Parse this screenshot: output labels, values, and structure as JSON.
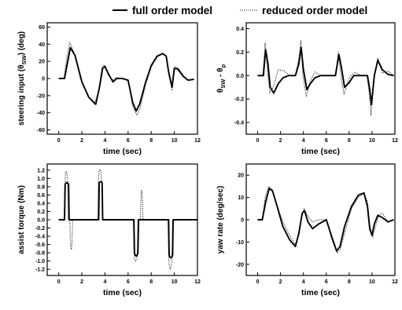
{
  "legend": {
    "full_label": "full order model",
    "reduced_label": "reduced order model"
  },
  "chart_data": [
    {
      "type": "line",
      "xlabel": "time (sec)",
      "ylabel_parts": [
        {
          "t": "steering input (θ"
        },
        {
          "t": "SW",
          "sub": true
        },
        {
          "t": ") (deg)"
        }
      ],
      "xlim": [
        -1,
        12
      ],
      "ylim": [
        -65,
        65
      ],
      "xticks": [
        0,
        2,
        4,
        6,
        8,
        10,
        12
      ],
      "yticks": [
        -60,
        -40,
        -20,
        0,
        20,
        40,
        60
      ],
      "grid": false,
      "series": [
        {
          "style": "solid",
          "x": [
            0,
            0.5,
            0.75,
            1.0,
            1.4,
            2.0,
            2.6,
            3.2,
            3.5,
            3.8,
            4.0,
            4.3,
            4.7,
            5.0,
            5.5,
            6.0,
            6.4,
            6.7,
            7.0,
            7.5,
            8.0,
            8.5,
            9.0,
            9.3,
            9.5,
            9.8,
            10.0,
            10.3,
            10.8,
            11.2,
            11.7
          ],
          "y": [
            0,
            0,
            18,
            36,
            27,
            -4,
            -22,
            -30,
            -12,
            12,
            14,
            5,
            -4,
            0,
            0,
            -2,
            -28,
            -38,
            -30,
            -5,
            15,
            26,
            29,
            26,
            8,
            -10,
            12,
            11,
            2,
            -2,
            -1
          ]
        },
        {
          "style": "dotted",
          "x": [
            0,
            0.45,
            0.7,
            0.95,
            1.3,
            1.9,
            2.5,
            3.1,
            3.45,
            3.75,
            3.95,
            4.2,
            4.6,
            5.0,
            5.5,
            6.0,
            6.4,
            6.75,
            7.05,
            7.5,
            8.0,
            8.5,
            9.0,
            9.3,
            9.5,
            9.8,
            10.05,
            10.35,
            10.8,
            11.2,
            11.7
          ],
          "y": [
            0,
            0,
            25,
            42,
            31,
            -1,
            -20,
            -30,
            -14,
            14,
            16,
            7,
            -2,
            1,
            0,
            -2,
            -33,
            -43,
            -34,
            -8,
            13,
            25,
            29,
            26,
            5,
            -14,
            14,
            12,
            3,
            -2,
            -1
          ]
        }
      ]
    },
    {
      "type": "line",
      "xlabel": "time (sec)",
      "ylabel_parts": [
        {
          "t": "θ"
        },
        {
          "t": "SW",
          "sub": true
        },
        {
          "t": " - θ"
        },
        {
          "t": "p",
          "sub": true
        }
      ],
      "xlim": [
        -1,
        12
      ],
      "ylim": [
        -0.5,
        0.45
      ],
      "xticks": [
        0,
        2,
        4,
        6,
        8,
        10,
        12
      ],
      "yticks": [
        -0.4,
        -0.2,
        0.0,
        0.2,
        0.4
      ],
      "grid": false,
      "series": [
        {
          "style": "solid",
          "x": [
            0,
            0.5,
            0.7,
            0.9,
            1.1,
            1.4,
            1.8,
            2.2,
            2.7,
            3.3,
            3.6,
            3.8,
            4.0,
            4.3,
            4.6,
            5.0,
            5.5,
            6.2,
            6.8,
            7.1,
            7.3,
            7.6,
            8.0,
            8.4,
            9.0,
            9.6,
            9.8,
            9.95,
            10.2,
            10.5,
            10.9,
            11.4,
            11.9
          ],
          "y": [
            0,
            0,
            0.22,
            0.1,
            -0.1,
            -0.15,
            -0.07,
            -0.02,
            0,
            0,
            0.1,
            0.24,
            0.05,
            -0.12,
            -0.07,
            -0.02,
            0,
            0,
            0,
            0.18,
            0.08,
            -0.1,
            -0.06,
            0,
            0,
            0,
            -0.12,
            -0.25,
            0.0,
            0.13,
            0.05,
            0.01,
            0
          ]
        },
        {
          "style": "dotted",
          "x": [
            0,
            0.45,
            0.65,
            0.85,
            1.05,
            1.35,
            1.8,
            2.3,
            2.8,
            3.3,
            3.6,
            3.78,
            3.95,
            4.25,
            4.6,
            5.0,
            5.5,
            6.2,
            6.8,
            7.05,
            7.25,
            7.55,
            8.0,
            8.5,
            9.0,
            9.55,
            9.75,
            9.9,
            10.15,
            10.5,
            10.9,
            11.4,
            11.9
          ],
          "y": [
            0,
            0,
            0.28,
            0.05,
            -0.15,
            -0.1,
            0.05,
            0.04,
            0,
            0,
            0.15,
            0.3,
            0.0,
            -0.18,
            -0.05,
            0.03,
            0,
            0,
            0,
            0.2,
            0.02,
            -0.16,
            -0.02,
            0.03,
            0,
            0,
            -0.15,
            -0.34,
            -0.05,
            0.15,
            0.02,
            0.04,
            0
          ]
        }
      ]
    },
    {
      "type": "line",
      "xlabel": "time (sec)",
      "ylabel_parts": [
        {
          "t": "assist torque (Nm)"
        }
      ],
      "xlim": [
        -1,
        12
      ],
      "ylim": [
        -1.35,
        1.35
      ],
      "xticks": [
        0,
        2,
        4,
        6,
        8,
        10,
        12
      ],
      "yticks": [
        -1.2,
        -1.0,
        -0.8,
        -0.6,
        -0.4,
        -0.2,
        0.0,
        0.2,
        0.4,
        0.6,
        0.8,
        1.0,
        1.2
      ],
      "grid": false,
      "series": [
        {
          "style": "solid",
          "x": [
            0,
            0.5,
            0.55,
            0.6,
            0.7,
            0.8,
            0.85,
            0.9,
            3.4,
            3.45,
            3.5,
            3.6,
            3.7,
            3.75,
            3.8,
            6.5,
            6.55,
            6.6,
            6.7,
            6.8,
            6.85,
            6.9,
            9.5,
            9.55,
            9.6,
            9.7,
            9.8,
            9.85,
            9.9,
            12
          ],
          "y": [
            0,
            0,
            0.85,
            0.88,
            0.9,
            0.88,
            0.85,
            0,
            0,
            0,
            0.9,
            0.92,
            0.92,
            0.9,
            0,
            0,
            -0.8,
            -0.85,
            -0.88,
            -0.85,
            -0.8,
            0,
            0,
            -0.85,
            -0.9,
            -0.92,
            -0.9,
            -0.85,
            0,
            0
          ]
        },
        {
          "style": "dotted",
          "x": [
            0,
            0.48,
            0.52,
            0.58,
            0.65,
            0.72,
            0.78,
            0.82,
            0.95,
            1.0,
            1.05,
            1.1,
            1.15,
            1.2,
            1.25,
            3.38,
            3.42,
            3.48,
            3.55,
            3.65,
            3.72,
            3.78,
            3.82,
            6.45,
            6.5,
            6.55,
            6.65,
            6.75,
            6.8,
            6.85,
            7.05,
            7.1,
            7.15,
            7.2,
            7.25,
            7.3,
            9.45,
            9.5,
            9.55,
            9.65,
            9.75,
            9.8,
            9.85,
            12
          ],
          "y": [
            0,
            0,
            0.8,
            1.1,
            1.18,
            1.1,
            0.8,
            0,
            0,
            -0.5,
            -0.7,
            -0.72,
            -0.5,
            0,
            0,
            0,
            0.9,
            1.18,
            1.22,
            1.18,
            0.9,
            0.5,
            0,
            0,
            -0.7,
            -0.95,
            -1.0,
            -0.95,
            -0.7,
            0,
            0,
            0.4,
            0.72,
            0.7,
            0.4,
            0,
            0,
            -0.8,
            -1.1,
            -1.2,
            -1.1,
            -0.8,
            0,
            0
          ]
        }
      ]
    },
    {
      "type": "line",
      "xlabel": "time (sec)",
      "ylabel_parts": [
        {
          "t": "yaw rate (deg/sec)"
        }
      ],
      "xlim": [
        -1,
        12
      ],
      "ylim": [
        -25,
        25
      ],
      "xticks": [
        0,
        2,
        4,
        6,
        8,
        10,
        12
      ],
      "yticks": [
        -20,
        -10,
        0,
        10,
        20
      ],
      "grid": false,
      "series": [
        {
          "style": "solid",
          "x": [
            0,
            0.4,
            0.7,
            1.0,
            1.3,
            1.7,
            2.2,
            2.8,
            3.3,
            3.6,
            3.9,
            4.1,
            4.4,
            4.8,
            5.3,
            6.0,
            6.5,
            6.9,
            7.2,
            7.6,
            8.2,
            8.8,
            9.3,
            9.6,
            9.8,
            10.0,
            10.2,
            10.5,
            10.9,
            11.4,
            11.9
          ],
          "y": [
            0,
            0,
            8,
            14,
            13,
            6,
            -3,
            -9,
            -12,
            -6,
            3,
            4,
            -1,
            -4,
            -2,
            0,
            -8,
            -14,
            -12,
            -3,
            6,
            11,
            12,
            6,
            -4,
            -7,
            -2,
            2,
            1,
            -1,
            0
          ]
        },
        {
          "style": "dotted",
          "x": [
            0,
            0.4,
            0.65,
            0.95,
            1.25,
            1.65,
            2.2,
            2.8,
            3.3,
            3.6,
            3.85,
            4.05,
            4.35,
            4.8,
            5.3,
            6.0,
            6.5,
            6.95,
            7.25,
            7.65,
            8.2,
            8.8,
            9.3,
            9.6,
            9.8,
            10.05,
            10.3,
            10.6,
            10.9,
            11.4,
            11.9
          ],
          "y": [
            0,
            0,
            10,
            15,
            13.5,
            7,
            -1,
            -7,
            -11,
            -7,
            2,
            5,
            2,
            -1,
            0,
            0,
            -9,
            -15,
            -13,
            -5,
            5,
            10,
            12,
            8,
            -2,
            -8,
            -3,
            2,
            3,
            -1,
            0
          ]
        }
      ]
    }
  ]
}
